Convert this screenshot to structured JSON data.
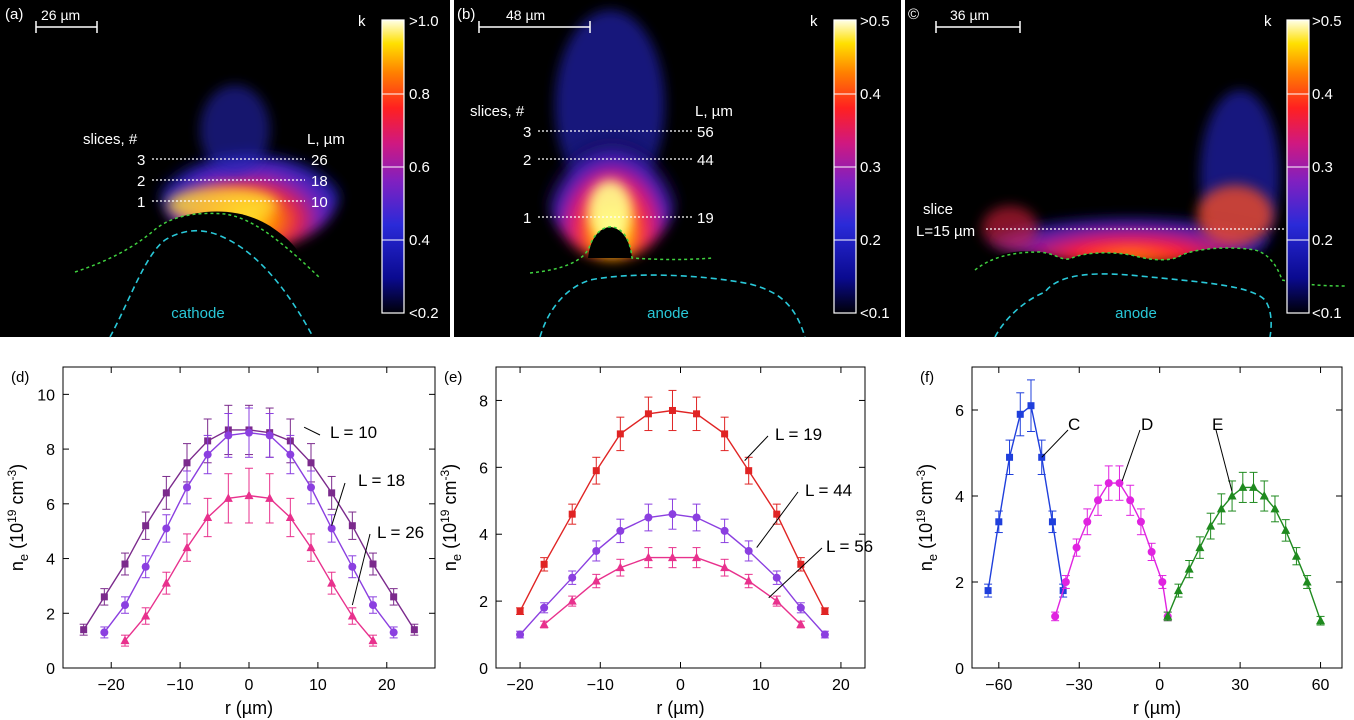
{
  "colorbar_title": "k",
  "top_panels": [
    {
      "id": "a",
      "label": "(a)",
      "scale_label": "26 µm",
      "electrode": "cathode",
      "colorbar_ticks": [
        ">1.0",
        "0.8",
        "0.6",
        "0.4",
        "<0.2"
      ],
      "slices_header": "slices, #",
      "length_header": "L, µm",
      "slices": [
        {
          "num": "3",
          "length": "26"
        },
        {
          "num": "2",
          "length": "18"
        },
        {
          "num": "1",
          "length": "10"
        }
      ]
    },
    {
      "id": "b",
      "label": "(b)",
      "scale_label": "48 µm",
      "electrode": "anode",
      "colorbar_ticks": [
        ">0.5",
        "0.4",
        "0.3",
        "0.2",
        "<0.1"
      ],
      "slices_header": "slices, #",
      "length_header": "L, µm",
      "slices": [
        {
          "num": "3",
          "length": "56"
        },
        {
          "num": "2",
          "length": "44"
        },
        {
          "num": "1",
          "length": "19"
        }
      ]
    },
    {
      "id": "c",
      "label": "©",
      "scale_label": "36 µm",
      "electrode": "anode",
      "colorbar_ticks": [
        ">0.5",
        "0.4",
        "0.3",
        "0.2",
        "<0.1"
      ],
      "slice_text_1": "slice",
      "slice_text_2": "L=15 µm"
    }
  ],
  "chart_data": [
    {
      "type": "line",
      "panel": "(d)",
      "xlabel": "r (µm)",
      "ylabel_main": "n",
      "ylabel_sub": "e",
      "ylabel_rest": " (10",
      "ylabel_exp": "19",
      "ylabel_unit": " cm",
      "ylabel_unit_exp": "-3",
      "ylabel_close": ")",
      "xlim": [
        -27,
        27
      ],
      "ylim": [
        0,
        11
      ],
      "xticks": [
        -20,
        -10,
        0,
        10,
        20
      ],
      "yticks": [
        0,
        2,
        4,
        6,
        8,
        10
      ],
      "series": [
        {
          "name": "L = 10",
          "color": "#7b2a8c",
          "marker": "square",
          "x": [
            -24,
            -21,
            -18,
            -15,
            -12,
            -9,
            -6,
            -3,
            0,
            3,
            6,
            9,
            12,
            15,
            18,
            21,
            24
          ],
          "y": [
            1.4,
            2.6,
            3.8,
            5.2,
            6.4,
            7.5,
            8.3,
            8.7,
            8.7,
            8.6,
            8.3,
            7.5,
            6.4,
            5.2,
            3.8,
            2.6,
            1.4
          ],
          "err": [
            0.2,
            0.3,
            0.4,
            0.5,
            0.6,
            0.7,
            0.8,
            0.9,
            0.9,
            0.9,
            0.8,
            0.7,
            0.6,
            0.5,
            0.4,
            0.3,
            0.2
          ]
        },
        {
          "name": "L = 18",
          "color": "#8b3fe0",
          "marker": "circle",
          "x": [
            -21,
            -18,
            -15,
            -12,
            -9,
            -6,
            -3,
            0,
            3,
            6,
            9,
            12,
            15,
            18,
            21
          ],
          "y": [
            1.3,
            2.3,
            3.7,
            5.1,
            6.6,
            7.8,
            8.5,
            8.6,
            8.5,
            7.8,
            6.6,
            5.1,
            3.7,
            2.3,
            1.3
          ],
          "err": [
            0.2,
            0.3,
            0.4,
            0.5,
            0.6,
            0.7,
            0.8,
            0.9,
            0.8,
            0.7,
            0.6,
            0.5,
            0.4,
            0.3,
            0.2
          ]
        },
        {
          "name": "L = 26",
          "color": "#e8318d",
          "marker": "triangle",
          "x": [
            -18,
            -15,
            -12,
            -9,
            -6,
            -3,
            0,
            3,
            6,
            9,
            12,
            15,
            18
          ],
          "y": [
            1.0,
            1.9,
            3.1,
            4.4,
            5.5,
            6.2,
            6.3,
            6.2,
            5.5,
            4.4,
            3.1,
            1.9,
            1.0
          ],
          "err": [
            0.2,
            0.3,
            0.4,
            0.5,
            0.7,
            0.9,
            1.0,
            0.9,
            0.7,
            0.5,
            0.4,
            0.3,
            0.2
          ]
        }
      ]
    },
    {
      "type": "line",
      "panel": "(e)",
      "xlabel": "r (µm)",
      "ylabel_main": "n",
      "ylabel_sub": "e",
      "ylabel_rest": " (10",
      "ylabel_exp": "19",
      "ylabel_unit": " cm",
      "ylabel_unit_exp": "-3",
      "ylabel_close": ")",
      "xlim": [
        -23,
        23
      ],
      "ylim": [
        0,
        9
      ],
      "xticks": [
        -20,
        -10,
        0,
        10,
        20
      ],
      "yticks": [
        0,
        2,
        4,
        6,
        8
      ],
      "series": [
        {
          "name": "L = 19",
          "color": "#e02424",
          "marker": "square",
          "x": [
            -20,
            -17,
            -13.5,
            -10.5,
            -7.5,
            -4,
            -1,
            2,
            5.5,
            8.5,
            12,
            15,
            18
          ],
          "y": [
            1.7,
            3.1,
            4.6,
            5.9,
            7.0,
            7.6,
            7.7,
            7.6,
            7.0,
            5.9,
            4.6,
            3.1,
            1.7
          ],
          "err": [
            0.1,
            0.2,
            0.3,
            0.4,
            0.5,
            0.5,
            0.6,
            0.5,
            0.5,
            0.4,
            0.3,
            0.2,
            0.1
          ]
        },
        {
          "name": "L = 44",
          "color": "#8b3fe0",
          "marker": "circle",
          "x": [
            -20,
            -17,
            -13.5,
            -10.5,
            -7.5,
            -4,
            -1,
            2,
            5.5,
            8.5,
            12,
            15,
            18
          ],
          "y": [
            1.0,
            1.8,
            2.7,
            3.5,
            4.1,
            4.5,
            4.6,
            4.5,
            4.1,
            3.5,
            2.7,
            1.8,
            1.0
          ],
          "err": [
            0.1,
            0.15,
            0.2,
            0.3,
            0.35,
            0.4,
            0.45,
            0.4,
            0.35,
            0.3,
            0.2,
            0.15,
            0.1
          ]
        },
        {
          "name": "L = 56",
          "color": "#e8318d",
          "marker": "triangle",
          "x": [
            -17,
            -13.5,
            -10.5,
            -7.5,
            -4,
            -1,
            2,
            5.5,
            8.5,
            12,
            15
          ],
          "y": [
            1.3,
            2.0,
            2.6,
            3.0,
            3.3,
            3.3,
            3.3,
            3.0,
            2.6,
            2.0,
            1.3
          ],
          "err": [
            0.1,
            0.15,
            0.2,
            0.25,
            0.3,
            0.3,
            0.3,
            0.25,
            0.2,
            0.15,
            0.1
          ]
        }
      ]
    },
    {
      "type": "line",
      "panel": "(f)",
      "xlabel": "r (µm)",
      "ylabel_main": "n",
      "ylabel_sub": "e",
      "ylabel_rest": " (10",
      "ylabel_exp": "19",
      "ylabel_unit": " cm",
      "ylabel_unit_exp": "-3",
      "ylabel_close": ")",
      "xlim": [
        -70,
        68
      ],
      "ylim": [
        0,
        7
      ],
      "xticks": [
        -60,
        -30,
        0,
        30,
        60
      ],
      "yticks": [
        0,
        2,
        4,
        6
      ],
      "series": [
        {
          "name": "C",
          "color": "#1f3fdc",
          "marker": "square",
          "x": [
            -64,
            -60,
            -56,
            -52,
            -48,
            -44,
            -40,
            -36
          ],
          "y": [
            1.8,
            3.4,
            4.9,
            5.9,
            6.1,
            4.9,
            3.4,
            1.8
          ],
          "err": [
            0.15,
            0.25,
            0.4,
            0.5,
            0.6,
            0.4,
            0.25,
            0.15
          ]
        },
        {
          "name": "D",
          "color": "#e023e0",
          "marker": "circle",
          "x": [
            -39,
            -35,
            -31,
            -27,
            -23,
            -19,
            -15,
            -11,
            -7,
            -3,
            1,
            3
          ],
          "y": [
            1.2,
            2.0,
            2.8,
            3.4,
            3.9,
            4.3,
            4.3,
            3.9,
            3.4,
            2.7,
            2.0,
            1.2
          ],
          "err": [
            0.1,
            0.15,
            0.2,
            0.3,
            0.35,
            0.4,
            0.4,
            0.35,
            0.3,
            0.2,
            0.15,
            0.1
          ]
        },
        {
          "name": "E",
          "color": "#1f8a1f",
          "marker": "triangle",
          "x": [
            3,
            7,
            11,
            15,
            19,
            23,
            27,
            31,
            35,
            39,
            43,
            47,
            51,
            55,
            60
          ],
          "y": [
            1.2,
            1.8,
            2.3,
            2.8,
            3.3,
            3.7,
            4.0,
            4.2,
            4.2,
            4.0,
            3.7,
            3.2,
            2.6,
            2.0,
            1.1
          ],
          "err": [
            0.1,
            0.15,
            0.2,
            0.25,
            0.3,
            0.35,
            0.35,
            0.35,
            0.35,
            0.35,
            0.3,
            0.25,
            0.2,
            0.15,
            0.1
          ]
        }
      ]
    }
  ]
}
